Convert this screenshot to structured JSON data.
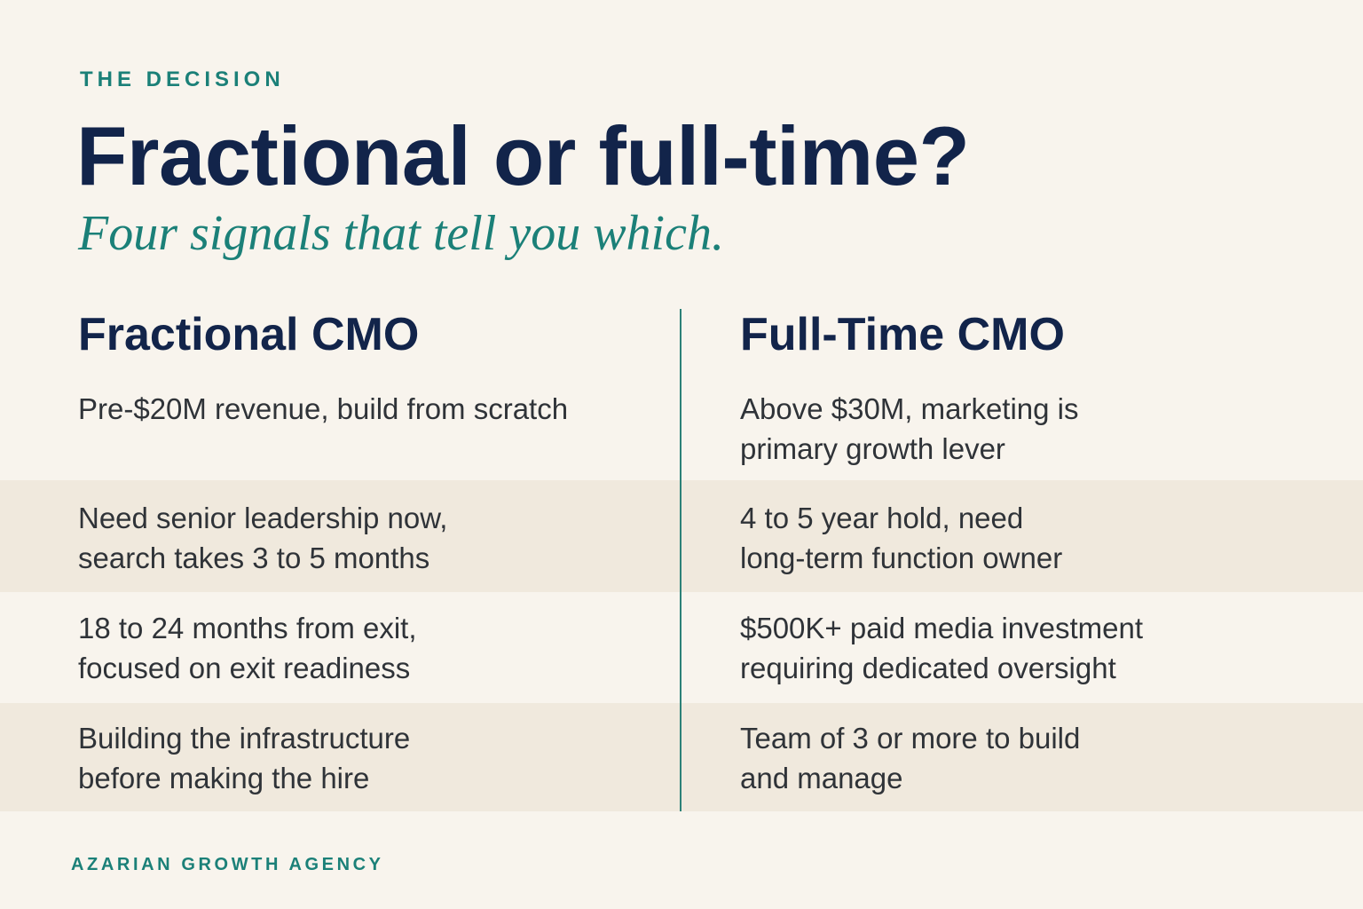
{
  "header": {
    "eyebrow": "THE DECISION",
    "title": "Fractional or full-time?",
    "subtitle": "Four signals that tell you which."
  },
  "columns": {
    "left": {
      "heading": "Fractional CMO",
      "signals": [
        "Pre-$20M revenue, build from scratch",
        "Need senior leadership now,\nsearch takes 3 to 5 months",
        "18 to 24 months from exit,\nfocused on exit readiness",
        "Building the infrastructure\nbefore making the hire"
      ]
    },
    "right": {
      "heading": "Full-Time CMO",
      "signals": [
        "Above $30M, marketing is\nprimary growth lever",
        "4 to 5 year hold, need\nlong-term function owner",
        "$500K+ paid media investment\nrequiring dedicated oversight",
        "Team of 3 or more to build\nand manage"
      ]
    }
  },
  "footer": {
    "brand": "AZARIAN GROWTH AGENCY"
  },
  "colors": {
    "background": "#f8f4ed",
    "band": "#f0e9dd",
    "navy": "#12244a",
    "teal": "#1b8078",
    "body_text": "#2f3338"
  }
}
